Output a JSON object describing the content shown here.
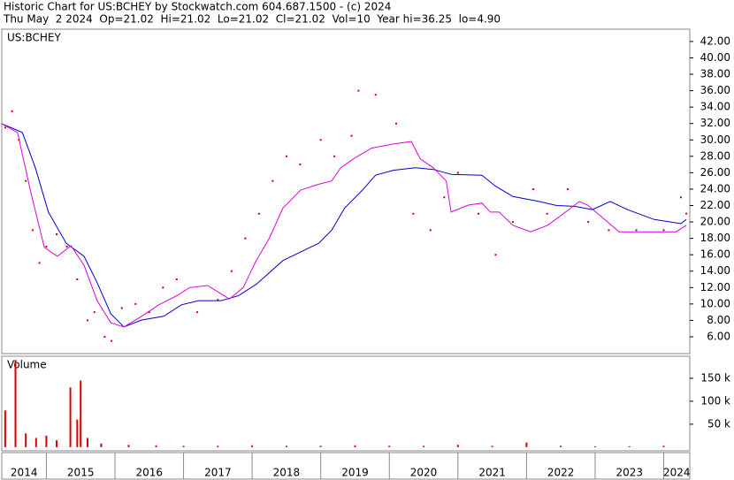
{
  "header": {
    "title": "Historic Chart for US:BCHEY by Stockwatch.com 604.687.1500 - (c) 2024",
    "quote": "Thu May  2 2024  Op=21.02  Hi=21.02  Lo=21.02  Cl=21.02  Vol=10  Year hi=36.25  lo=4.90"
  },
  "chart_data": [
    {
      "type": "line",
      "title": "US:BCHEY",
      "xlim": [
        2014.35,
        2024.38
      ],
      "ylim": [
        3.95,
        43.5
      ],
      "yticks": [
        {
          "value": 6,
          "label": "6.00"
        },
        {
          "value": 8,
          "label": "8.00"
        },
        {
          "value": 10,
          "label": "10.00"
        },
        {
          "value": 12,
          "label": "12.00"
        },
        {
          "value": 14,
          "label": "14.00"
        },
        {
          "value": 16,
          "label": "16.00"
        },
        {
          "value": 18,
          "label": "18.00"
        },
        {
          "value": 20,
          "label": "20.00"
        },
        {
          "value": 22,
          "label": "22.00"
        },
        {
          "value": 24,
          "label": "24.00"
        },
        {
          "value": 26,
          "label": "26.00"
        },
        {
          "value": 28,
          "label": "28.00"
        },
        {
          "value": 30,
          "label": "30.00"
        },
        {
          "value": 32,
          "label": "32.00"
        },
        {
          "value": 34,
          "label": "34.00"
        },
        {
          "value": 36,
          "label": "36.00"
        },
        {
          "value": 38,
          "label": "38.00"
        },
        {
          "value": 40,
          "label": "40.00"
        },
        {
          "value": 42,
          "label": "42.00"
        }
      ],
      "series": [
        {
          "style": "dots",
          "color": "#cc0000",
          "x": [
            2014.4,
            2014.5,
            2014.6,
            2014.7,
            2014.8,
            2014.9,
            2015.0,
            2015.15,
            2015.3,
            2015.45,
            2015.6,
            2015.7,
            2015.85,
            2015.95,
            2016.1,
            2016.3,
            2016.5,
            2016.7,
            2016.9,
            2017.2,
            2017.5,
            2017.7,
            2017.9,
            2018.1,
            2018.3,
            2018.5,
            2018.7,
            2019.0,
            2019.2,
            2019.45,
            2019.55,
            2019.8,
            2020.1,
            2020.35,
            2020.6,
            2020.8,
            2021.0,
            2021.3,
            2021.55,
            2021.8,
            2022.1,
            2022.3,
            2022.6,
            2022.9,
            2023.2,
            2023.6,
            2024.0,
            2024.25,
            2024.33
          ],
          "values": [
            31.5,
            33.5,
            30,
            25,
            19,
            15,
            17,
            18.5,
            17,
            13,
            8,
            9,
            6,
            5.5,
            9.5,
            10,
            9,
            12,
            13,
            9,
            10.5,
            14,
            18,
            21,
            25,
            28,
            27,
            30,
            28,
            30.5,
            36,
            35.5,
            32,
            21,
            19,
            23,
            26,
            21,
            16,
            20,
            24,
            21,
            24,
            20,
            19,
            19,
            19,
            23,
            21.02
          ]
        },
        {
          "style": "line",
          "color": "#0000cc",
          "x": [
            2014.35,
            2014.65,
            2014.84,
            2015.03,
            2015.29,
            2015.55,
            2015.74,
            2015.94,
            2016.13,
            2016.39,
            2016.71,
            2016.97,
            2017.22,
            2017.55,
            2017.8,
            2018.06,
            2018.45,
            2018.71,
            2018.97,
            2019.16,
            2019.35,
            2019.61,
            2019.8,
            2020.06,
            2020.38,
            2020.64,
            2020.9,
            2021.35,
            2021.54,
            2021.8,
            2022.18,
            2022.44,
            2022.7,
            2022.96,
            2023.22,
            2023.47,
            2023.86,
            2024.25,
            2024.33
          ],
          "values": [
            31.98,
            30.9,
            26.6,
            21.2,
            17.4,
            15.8,
            12.6,
            8.8,
            7.2,
            8.05,
            8.5,
            9.9,
            10.4,
            10.4,
            11.0,
            12.4,
            15.3,
            16.35,
            17.4,
            19.0,
            21.7,
            23.9,
            25.7,
            26.3,
            26.6,
            26.4,
            25.8,
            25.7,
            24.4,
            23.1,
            22.5,
            22.0,
            21.9,
            21.5,
            22.5,
            21.5,
            20.3,
            19.8,
            20.3
          ]
        },
        {
          "style": "line",
          "color": "#dd00dd",
          "x": [
            2014.35,
            2014.58,
            2014.78,
            2014.97,
            2015.16,
            2015.36,
            2015.55,
            2015.74,
            2015.94,
            2016.13,
            2016.39,
            2016.64,
            2016.9,
            2017.09,
            2017.35,
            2017.67,
            2017.87,
            2018.06,
            2018.25,
            2018.45,
            2018.71,
            2018.97,
            2019.16,
            2019.29,
            2019.48,
            2019.74,
            2020.06,
            2020.32,
            2020.45,
            2020.64,
            2020.83,
            2020.9,
            2021.15,
            2021.35,
            2021.47,
            2021.6,
            2021.8,
            2022.06,
            2022.31,
            2022.57,
            2022.77,
            2022.89,
            2023.09,
            2023.35,
            2023.73,
            2024.18,
            2024.33
          ],
          "values": [
            31.98,
            30.9,
            23.35,
            16.9,
            15.8,
            17.1,
            14.7,
            10.4,
            7.7,
            7.2,
            8.5,
            9.9,
            11.0,
            12.0,
            12.25,
            10.6,
            12.0,
            15.3,
            18.0,
            21.7,
            23.9,
            24.6,
            25.0,
            26.6,
            27.7,
            29.0,
            29.5,
            29.8,
            27.7,
            26.6,
            25.0,
            21.2,
            22.05,
            22.3,
            21.2,
            21.2,
            19.6,
            18.8,
            19.6,
            21.2,
            22.5,
            22.05,
            20.65,
            18.8,
            18.8,
            18.8,
            19.6
          ]
        }
      ]
    },
    {
      "type": "bar",
      "title": "Volume",
      "xlim": [
        2014.35,
        2024.38
      ],
      "ylim": [
        -8000,
        198000
      ],
      "yticks": [
        {
          "value": 50000,
          "label": "50 k"
        },
        {
          "value": 100000,
          "label": "100 k"
        },
        {
          "value": 150000,
          "label": "150 k"
        }
      ],
      "xticks": [
        2015,
        2016,
        2017,
        2018,
        2019,
        2020,
        2021,
        2022,
        2023,
        2024
      ],
      "year_labels": [
        "2014",
        "2015",
        "2016",
        "2017",
        "2018",
        "2019",
        "2020",
        "2021",
        "2022",
        "2023",
        "2024"
      ],
      "color": "#dd0000",
      "x": [
        2014.4,
        2014.55,
        2014.7,
        2014.85,
        2015.0,
        2015.15,
        2015.35,
        2015.45,
        2015.5,
        2015.6,
        2015.8,
        2016.2,
        2016.6,
        2017.0,
        2017.5,
        2018.0,
        2018.5,
        2019.0,
        2019.5,
        2020.0,
        2020.5,
        2021.0,
        2021.5,
        2022.0,
        2022.5,
        2023.0,
        2023.5,
        2024.0
      ],
      "values": [
        80000,
        190000,
        30000,
        20000,
        25000,
        15000,
        130000,
        60000,
        145000,
        20000,
        8000,
        5000,
        4000,
        3000,
        3000,
        4000,
        3000,
        3000,
        4000,
        3000,
        3000,
        5000,
        3000,
        10000,
        3000,
        2000,
        2000,
        3000
      ]
    }
  ]
}
